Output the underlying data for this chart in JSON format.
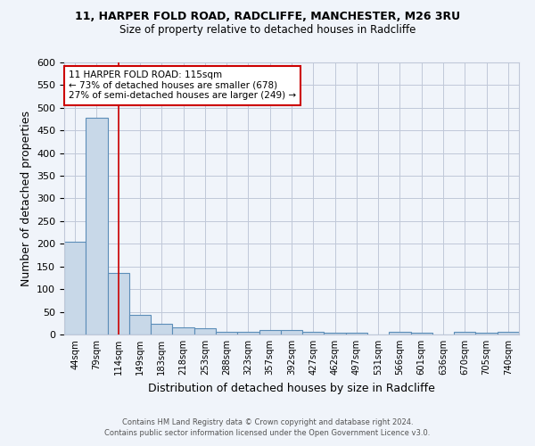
{
  "title1": "11, HARPER FOLD ROAD, RADCLIFFE, MANCHESTER, M26 3RU",
  "title2": "Size of property relative to detached houses in Radcliffe",
  "xlabel": "Distribution of detached houses by size in Radcliffe",
  "ylabel": "Number of detached properties",
  "footnote1": "Contains HM Land Registry data © Crown copyright and database right 2024.",
  "footnote2": "Contains public sector information licensed under the Open Government Licence v3.0.",
  "categories": [
    "44sqm",
    "79sqm",
    "114sqm",
    "149sqm",
    "183sqm",
    "218sqm",
    "253sqm",
    "288sqm",
    "323sqm",
    "357sqm",
    "392sqm",
    "427sqm",
    "462sqm",
    "497sqm",
    "531sqm",
    "566sqm",
    "601sqm",
    "636sqm",
    "670sqm",
    "705sqm",
    "740sqm"
  ],
  "values": [
    205,
    478,
    135,
    43,
    24,
    15,
    14,
    5,
    5,
    10,
    10,
    5,
    3,
    3,
    0,
    5,
    3,
    0,
    5,
    3,
    5
  ],
  "bar_color": "#c8d8e8",
  "bar_edge_color": "#5b8db8",
  "grid_color": "#c0c8d8",
  "background_color": "#f0f4fa",
  "vline_x": 2,
  "vline_color": "#cc0000",
  "annotation_text": "11 HARPER FOLD ROAD: 115sqm\n← 73% of detached houses are smaller (678)\n27% of semi-detached houses are larger (249) →",
  "annotation_box_color": "#ffffff",
  "annotation_box_edge": "#cc0000",
  "ylim": [
    0,
    600
  ],
  "yticks": [
    0,
    50,
    100,
    150,
    200,
    250,
    300,
    350,
    400,
    450,
    500,
    550,
    600
  ]
}
